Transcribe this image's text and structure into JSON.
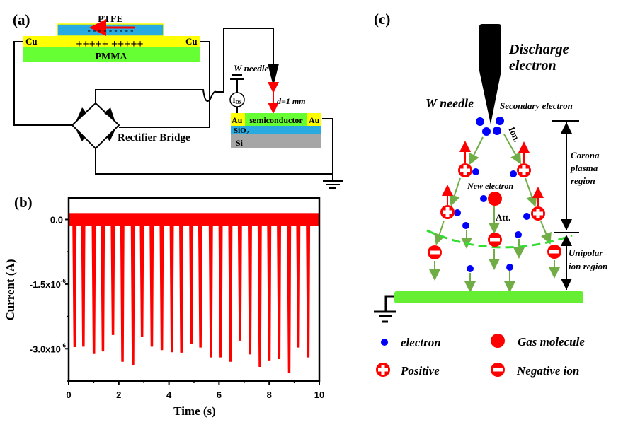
{
  "panel_a": {
    "label": "(a)",
    "ptfe": "PTFE",
    "ptfe_charges": "- - - -   - - - - -",
    "cu_charges": "+++++ +++++",
    "cu_left": "Cu",
    "cu_right": "Cu",
    "pmma": "PMMA",
    "rectifier": "Rectifier Bridge",
    "w_needle": "W needle",
    "ammeter": "I",
    "ammeter_sub": "DS",
    "distance": "d=1 mm",
    "au_left": "Au",
    "semiconductor": "semiconductor",
    "au_right": "Au",
    "sio2": "SiO",
    "sio2_sub": "2",
    "si": "Si",
    "colors": {
      "ptfe": "#29abe2",
      "electrode": "#ffff00",
      "pmma": "#66ff33",
      "semiconductor": "#66ff33",
      "sio2": "#29abe2",
      "si": "#a6a6a6",
      "arrow": "#ff0000"
    }
  },
  "panel_b": {
    "label": "(b)"
  },
  "panel_c": {
    "label": "(c)",
    "discharge_line1": "Discharge",
    "discharge_line2": "electron",
    "w_needle": "W needle",
    "secondary_electron": "Secondary electron",
    "ion": "Ion.",
    "new_electron": "New electron",
    "att": "Att.",
    "corona": [
      "Corona",
      "plasma",
      "region"
    ],
    "unipolar": [
      "Unipolar",
      "ion region"
    ],
    "legend": {
      "electron": "electron",
      "gas_molecule": "Gas molecule",
      "positive": "Positive",
      "negative_ion": "Negative ion"
    },
    "colors": {
      "electron": "#0000ff",
      "ion": "#ff0000",
      "arrow": "#70ad47",
      "plate": "#66ee33",
      "boundary": "#33dd33"
    }
  },
  "chart_data": {
    "type": "line",
    "xlabel": "Time (s)",
    "ylabel": "Current (A)",
    "xlim": [
      0,
      10
    ],
    "ylim": [
      -3.75e-06,
      5e-07
    ],
    "xticks": [
      "0",
      "2",
      "4",
      "6",
      "8",
      "10"
    ],
    "xtick_values": [
      0,
      2,
      4,
      6,
      8,
      10
    ],
    "yticks": [
      "0.0",
      "-1.5x10",
      "-3.0x10"
    ],
    "ytick_exp": "-6",
    "ytick_values": [
      0,
      -1.5e-06,
      -3e-06
    ],
    "grid": false,
    "color": "#ff0000",
    "baseline_noise": [
      -1.5e-07,
      1.5e-07
    ],
    "series": [
      {
        "pulse_times": [
          0.21,
          0.56,
          0.98,
          1.34,
          1.74,
          2.12,
          2.54,
          2.9,
          3.29,
          3.69,
          4.09,
          4.47,
          4.87,
          5.23,
          5.65,
          6.04,
          6.43,
          6.81,
          7.21,
          7.6,
          7.98,
          8.37,
          8.77,
          9.14,
          9.53
        ],
        "pulse_peaks": [
          -2.95e-06,
          -2.94e-06,
          -3.11e-06,
          -3.05e-06,
          -2.67e-06,
          -3.29e-06,
          -3.36e-06,
          -2.71e-06,
          -2.94e-06,
          -3.02e-06,
          -3.07e-06,
          -3.08e-06,
          -2.87e-06,
          -2.96e-06,
          -3.19e-06,
          -3.19e-06,
          -3.29e-06,
          -2.8e-06,
          -3.12e-06,
          -3.41e-06,
          -3.26e-06,
          -3.23e-06,
          -3.55e-06,
          -2.96e-06,
          -3.19e-06
        ]
      }
    ]
  }
}
